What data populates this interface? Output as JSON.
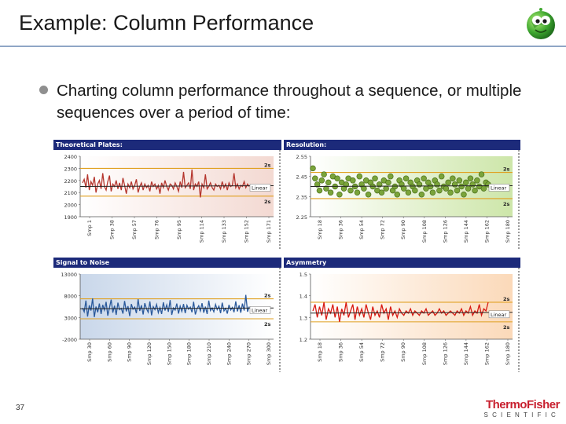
{
  "slide": {
    "title": "Example: Column Performance",
    "bullet": "Charting column performance throughout a sequence, or multiple sequences over a period of time:",
    "page_number": "37",
    "logo": {
      "main": "ThermoFisher",
      "sub": "SCIENTIFIC"
    }
  },
  "colors": {
    "panel_header": "#1c2a7a",
    "limit_line": "#e0a020",
    "mean_line": "#222222",
    "plates_series": "#b5362e",
    "resolution_points": "#4a6e1a",
    "noise_series": "#2b5a9c",
    "asymmetry_series": "#d81a12"
  },
  "chart_data": [
    {
      "type": "line",
      "title": "Theoretical Plates:",
      "yticks": [
        "2400",
        "2300",
        "2200",
        "2100",
        "2000",
        "1900"
      ],
      "ylim": [
        1900,
        2400
      ],
      "xticks": [
        "Smp 1",
        "Smp 38",
        "Smp 57",
        "Smp 76",
        "Smp 95",
        "Smp 114",
        "Smp 133",
        "Smp 152",
        "Smp 171"
      ],
      "limits": {
        "upper": 2300,
        "lower": 2070,
        "mean": 2150,
        "upper_label": "2s",
        "lower_label": "2s",
        "trend_label": "Linear"
      },
      "series": [
        {
          "values": [
            2180,
            2210,
            2140,
            2250,
            2120,
            2190,
            2160,
            2230,
            2100,
            2170,
            2200,
            2130,
            2260,
            2150,
            2120,
            2190,
            2240,
            2110,
            2170,
            2150,
            2200,
            2130,
            2180,
            2120,
            2220,
            2160,
            2090,
            2170,
            2140,
            2190,
            2130,
            2160,
            2210,
            2100,
            2150,
            2180,
            2120,
            2170,
            2140,
            2160,
            2110,
            2190,
            2150,
            2170,
            2130,
            2160,
            2090,
            2180,
            2140,
            2200,
            2150,
            2120,
            2170,
            2160,
            2130,
            2180,
            2150,
            2110,
            2190,
            2140,
            2270,
            2140,
            2160,
            2180,
            2130,
            2290,
            2120,
            2170,
            2150,
            2190,
            2060,
            2170,
            2140,
            2250,
            2130,
            2150,
            2180,
            2140,
            2120,
            2170,
            2150,
            2160,
            2130,
            2190,
            2140,
            2170,
            2120,
            2180,
            2150,
            2160,
            2260,
            2140,
            2170,
            2130,
            2160,
            2150,
            2190,
            2140,
            2170,
            2150
          ]
        }
      ]
    },
    {
      "type": "scatter",
      "title": "Resolution:",
      "yticks": [
        "2.55",
        "2.45",
        "2.35",
        "2.25"
      ],
      "ylim": [
        2.25,
        2.55
      ],
      "xticks": [
        "Smp 18",
        "Smp 36",
        "Smp 54",
        "Smp 72",
        "Smp 90",
        "Smp 108",
        "Smp 126",
        "Smp 144",
        "Smp 162",
        "Smp 180"
      ],
      "limits": {
        "upper": 2.47,
        "lower": 2.34,
        "mean": 2.4,
        "upper_label": "2s",
        "lower_label": "2s",
        "trend_label": "Linear"
      },
      "series": [
        {
          "values": [
            2.49,
            2.44,
            2.41,
            2.38,
            2.43,
            2.46,
            2.39,
            2.42,
            2.37,
            2.45,
            2.4,
            2.44,
            2.36,
            2.42,
            2.39,
            2.41,
            2.44,
            2.38,
            2.43,
            2.4,
            2.37,
            2.45,
            2.41,
            2.39,
            2.43,
            2.36,
            2.42,
            2.4,
            2.44,
            2.38,
            2.41,
            2.37,
            2.43,
            2.39,
            2.42,
            2.45,
            2.38,
            2.4,
            2.36,
            2.43,
            2.41,
            2.39,
            2.44,
            2.37,
            2.42,
            2.4,
            2.38,
            2.43,
            2.41,
            2.36,
            2.44,
            2.39,
            2.42,
            2.4,
            2.37,
            2.43,
            2.41,
            2.38,
            2.45,
            2.4,
            2.39,
            2.42,
            2.37,
            2.44,
            2.41,
            2.38,
            2.43,
            2.4,
            2.36,
            2.42,
            2.39,
            2.44,
            2.41,
            2.38,
            2.43,
            2.4,
            2.46,
            2.39,
            2.42,
            2.41
          ]
        }
      ]
    },
    {
      "type": "line",
      "title": "Signal to Noise",
      "yticks": [
        "13000",
        "8000",
        "3000",
        "-2000"
      ],
      "ylim": [
        -2000,
        13000
      ],
      "xticks": [
        "Smp 30",
        "Smp 60",
        "Smp 90",
        "Smp 120",
        "Smp 150",
        "Smp 180",
        "Smp 210",
        "Smp 240",
        "Smp 270",
        "Smp 300"
      ],
      "limits": {
        "upper": 7300,
        "lower": 2700,
        "mean": 5000,
        "upper_label": "2s",
        "lower_label": "2s",
        "trend_label": "Linear"
      },
      "series": [
        {
          "values": [
            5200,
            4300,
            6900,
            3200,
            5800,
            4600,
            7400,
            3100,
            5500,
            4200,
            6200,
            3800,
            5900,
            4700,
            6600,
            3400,
            5300,
            7100,
            4100,
            5700,
            3600,
            6400,
            4800,
            5100,
            3900,
            6800,
            4400,
            5600,
            3300,
            6100,
            4900,
            5400,
            4000,
            7200,
            4500,
            5800,
            3700,
            6300,
            5000,
            4200,
            6700,
            3500,
            5500,
            4800,
            6000,
            4100,
            5300,
            3800,
            6500,
            4600,
            5900,
            4300,
            7000,
            3600,
            5200,
            4700,
            6200,
            3900,
            5600,
            4400,
            6100,
            4000,
            5800,
            4900,
            5400,
            4200,
            6600,
            3700,
            5000,
            5700,
            4500,
            6300,
            4100,
            5500,
            3800,
            6900,
            4600,
            5200,
            4300,
            6000,
            4800,
            5600,
            4000,
            6400,
            4500,
            5100,
            3900,
            5900,
            4700,
            5300,
            4200,
            6700,
            4400,
            5800,
            4100,
            6200,
            4600,
            8200,
            4300,
            5500
          ]
        }
      ]
    },
    {
      "type": "line",
      "title": "Asymmetry",
      "yticks": [
        "1.5",
        "1.4",
        "1.3",
        "1.2"
      ],
      "ylim": [
        1.2,
        1.5
      ],
      "xticks": [
        "Smp 18",
        "Smp 36",
        "Smp 54",
        "Smp 72",
        "Smp 90",
        "Smp 108",
        "Smp 126",
        "Smp 144",
        "Smp 162",
        "Smp 180"
      ],
      "limits": {
        "upper": 1.37,
        "lower": 1.28,
        "mean": 1.32,
        "upper_label": "2s",
        "lower_label": "2s",
        "trend_label": "Linear"
      },
      "series": [
        {
          "values": [
            1.33,
            1.36,
            1.3,
            1.35,
            1.31,
            1.37,
            1.29,
            1.34,
            1.32,
            1.36,
            1.3,
            1.35,
            1.28,
            1.34,
            1.31,
            1.37,
            1.3,
            1.33,
            1.36,
            1.29,
            1.35,
            1.31,
            1.34,
            1.3,
            1.36,
            1.32,
            1.29,
            1.35,
            1.31,
            1.33,
            1.3,
            1.36,
            1.32,
            1.34,
            1.29,
            1.35,
            1.31,
            1.33,
            1.3,
            1.34,
            1.32,
            1.31,
            1.33,
            1.32,
            1.34,
            1.31,
            1.33,
            1.32,
            1.31,
            1.33,
            1.32,
            1.34,
            1.31,
            1.32,
            1.33,
            1.31,
            1.32,
            1.34,
            1.32,
            1.33,
            1.31,
            1.32,
            1.33,
            1.32,
            1.31,
            1.33,
            1.32,
            1.34,
            1.31,
            1.33,
            1.32,
            1.35,
            1.31,
            1.33,
            1.32,
            1.36,
            1.31,
            1.34,
            1.33,
            1.37
          ]
        }
      ]
    }
  ]
}
